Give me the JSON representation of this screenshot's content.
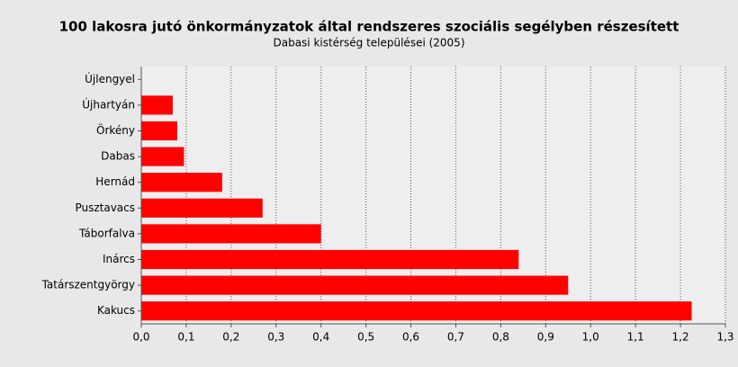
{
  "chart_data": {
    "type": "bar",
    "orientation": "horizontal",
    "title": "100  lakosra jutó önkormányzatok által rendszeres szociális segélyben részesített",
    "subtitle": "Dabasi kistérség települései (2005)",
    "categories": [
      "Újlengyel",
      "Újhartyán",
      "Örkény",
      "Dabas",
      "Hernád",
      "Pusztavacs",
      "Táborfalva",
      "Inárcs",
      "Tatárszentgyörgy",
      "Kakucs"
    ],
    "values": [
      0,
      0.07,
      0.08,
      0.095,
      0.18,
      0.27,
      0.4,
      0.84,
      0.95,
      1.225
    ],
    "color": "#ff0000",
    "xlim": [
      0,
      1.3
    ],
    "xticks": [
      {
        "value": 0,
        "label": "0,0"
      },
      {
        "value": 0.1,
        "label": "0,1"
      },
      {
        "value": 0.2,
        "label": "0,2"
      },
      {
        "value": 0.3,
        "label": "0,3"
      },
      {
        "value": 0.4,
        "label": "0,4"
      },
      {
        "value": 0.5,
        "label": "0,5"
      },
      {
        "value": 0.6,
        "label": "0,6"
      },
      {
        "value": 0.7,
        "label": "0,7"
      },
      {
        "value": 0.8,
        "label": "0,8"
      },
      {
        "value": 0.9,
        "label": "0,9"
      },
      {
        "value": 1,
        "label": "1,0"
      },
      {
        "value": 1.1,
        "label": "1,1"
      },
      {
        "value": 1.2,
        "label": "1,2"
      },
      {
        "value": 1.3,
        "label": "1,3"
      }
    ],
    "grid": true
  }
}
